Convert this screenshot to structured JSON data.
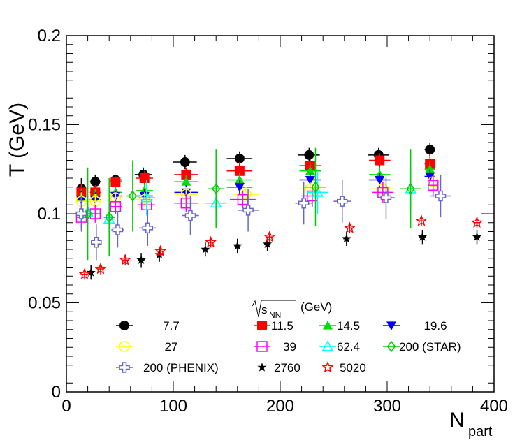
{
  "chart_data": {
    "type": "scatter",
    "title": "",
    "xlabel": "N",
    "xlabel_sub": "part",
    "ylabel": "T (GeV)",
    "xlim": [
      0,
      400
    ],
    "ylim": [
      0,
      0.2
    ],
    "xticks": [
      "0",
      "100",
      "200",
      "300",
      "400"
    ],
    "yticks": [
      "0",
      "0.05",
      "0.1",
      "0.15",
      "0.2"
    ],
    "grid": false,
    "legend_header": "(GeV)",
    "legend_header_radical": "s",
    "legend_header_sub": "NN",
    "series": [
      {
        "name": "7.7",
        "color": "#000000",
        "marker": "circle-filled",
        "points": [
          [
            14,
            0.114,
            4,
            0.006
          ],
          [
            27,
            0.118,
            5,
            0.004
          ],
          [
            46,
            0.119,
            6,
            0.003
          ],
          [
            72,
            0.122,
            8,
            0.004
          ],
          [
            111,
            0.129,
            11,
            0.004
          ],
          [
            162,
            0.131,
            12,
            0.004
          ],
          [
            227,
            0.133,
            10,
            0.004
          ],
          [
            292,
            0.133,
            10,
            0.004
          ],
          [
            340,
            0.136,
            5,
            0.004
          ]
        ]
      },
      {
        "name": "11.5",
        "color": "#ff0000",
        "marker": "square-filled",
        "points": [
          [
            14,
            0.112,
            4,
            0.005
          ],
          [
            27,
            0.112,
            5,
            0.004
          ],
          [
            46,
            0.118,
            6,
            0.003
          ],
          [
            73,
            0.12,
            8,
            0.004
          ],
          [
            112,
            0.122,
            11,
            0.004
          ],
          [
            162,
            0.124,
            12,
            0.005
          ],
          [
            228,
            0.127,
            10,
            0.004
          ],
          [
            293,
            0.13,
            10,
            0.004
          ],
          [
            340,
            0.128,
            5,
            0.004
          ]
        ]
      },
      {
        "name": "14.5",
        "color": "#00dd00",
        "marker": "triangle-up-filled",
        "points": [
          [
            14,
            0.109,
            4,
            0.005
          ],
          [
            27,
            0.11,
            5,
            0.004
          ],
          [
            46,
            0.112,
            6,
            0.003
          ],
          [
            73,
            0.113,
            8,
            0.004
          ],
          [
            112,
            0.118,
            11,
            0.004
          ],
          [
            162,
            0.119,
            12,
            0.004
          ],
          [
            228,
            0.124,
            10,
            0.004
          ],
          [
            293,
            0.122,
            10,
            0.004
          ],
          [
            340,
            0.125,
            5,
            0.004
          ]
        ]
      },
      {
        "name": "19.6",
        "color": "#0000ff",
        "marker": "triangle-down-filled",
        "points": [
          [
            14,
            0.108,
            4,
            0.005
          ],
          [
            27,
            0.108,
            5,
            0.004
          ],
          [
            46,
            0.11,
            6,
            0.003
          ],
          [
            73,
            0.11,
            8,
            0.004
          ],
          [
            112,
            0.112,
            11,
            0.004
          ],
          [
            162,
            0.115,
            12,
            0.004
          ],
          [
            228,
            0.119,
            10,
            0.004
          ],
          [
            293,
            0.119,
            10,
            0.004
          ],
          [
            340,
            0.121,
            5,
            0.004
          ]
        ]
      },
      {
        "name": "27",
        "color": "#ffff00",
        "marker": "circle-open",
        "points": [
          [
            14,
            0.107,
            4,
            0.005
          ],
          [
            27,
            0.107,
            5,
            0.004
          ],
          [
            46,
            0.109,
            6,
            0.003
          ],
          [
            73,
            0.108,
            8,
            0.004
          ],
          [
            112,
            0.111,
            11,
            0.004
          ],
          [
            168,
            0.111,
            12,
            0.004
          ],
          [
            228,
            0.114,
            10,
            0.004
          ],
          [
            296,
            0.114,
            10,
            0.004
          ],
          [
            343,
            0.118,
            5,
            0.004
          ]
        ]
      },
      {
        "name": "39",
        "color": "#ff00ff",
        "marker": "square-open",
        "points": [
          [
            14,
            0.098,
            4,
            0.006
          ],
          [
            27,
            0.1,
            5,
            0.005
          ],
          [
            46,
            0.104,
            6,
            0.004
          ],
          [
            75,
            0.105,
            8,
            0.004
          ],
          [
            112,
            0.106,
            11,
            0.005
          ],
          [
            165,
            0.108,
            12,
            0.005
          ],
          [
            230,
            0.11,
            10,
            0.006
          ],
          [
            296,
            0.112,
            10,
            0.006
          ],
          [
            343,
            0.116,
            5,
            0.006
          ]
        ]
      },
      {
        "name": "62.4",
        "color": "#00ffff",
        "marker": "triangle-up-open",
        "points": [
          [
            20,
            0.101,
            4,
            0.008
          ],
          [
            40,
            0.097,
            5,
            0.008
          ],
          [
            75,
            0.109,
            8,
            0.01
          ],
          [
            140,
            0.106,
            10,
            0.01
          ],
          [
            235,
            0.112,
            10,
            0.012
          ],
          [
            322,
            0.114,
            10,
            0.012
          ]
        ]
      },
      {
        "name": "200 (STAR)",
        "color": "#00cc00",
        "marker": "diamond-open",
        "points": [
          [
            20,
            0.1,
            4,
            0.026
          ],
          [
            40,
            0.098,
            5,
            0.022
          ],
          [
            62,
            0.11,
            6,
            0.02
          ],
          [
            140,
            0.114,
            8,
            0.022
          ],
          [
            233,
            0.115,
            10,
            0.022
          ],
          [
            322,
            0.114,
            10,
            0.022
          ]
        ]
      },
      {
        "name": "200 (PHENIX)",
        "color": "#6666cc",
        "marker": "cross-open",
        "points": [
          [
            14,
            0.1,
            4,
            0.01
          ],
          [
            28,
            0.084,
            5,
            0.01
          ],
          [
            48,
            0.091,
            6,
            0.01
          ],
          [
            76,
            0.092,
            8,
            0.01
          ],
          [
            116,
            0.099,
            8,
            0.011
          ],
          [
            170,
            0.102,
            10,
            0.012
          ],
          [
            222,
            0.106,
            8,
            0.012
          ],
          [
            258,
            0.107,
            8,
            0.012
          ],
          [
            299,
            0.109,
            8,
            0.012
          ],
          [
            350,
            0.11,
            10,
            0.012
          ]
        ]
      },
      {
        "name": "2760",
        "color": "#000000",
        "marker": "star-filled",
        "points": [
          [
            23,
            0.067,
            3,
            0.004
          ],
          [
            70,
            0.074,
            3,
            0.004
          ],
          [
            87,
            0.077,
            3,
            0.004
          ],
          [
            130,
            0.08,
            3,
            0.004
          ],
          [
            160,
            0.082,
            3,
            0.004
          ],
          [
            188,
            0.083,
            3,
            0.004
          ],
          [
            262,
            0.086,
            3,
            0.004
          ],
          [
            333,
            0.087,
            3,
            0.004
          ],
          [
            384,
            0.087,
            3,
            0.004
          ]
        ]
      },
      {
        "name": "5020",
        "color": "#ff0000",
        "marker": "star-open",
        "points": [
          [
            17,
            0.066,
            3,
            0.003
          ],
          [
            32,
            0.069,
            3,
            0.003
          ],
          [
            55,
            0.074,
            3,
            0.003
          ],
          [
            88,
            0.079,
            3,
            0.003
          ],
          [
            135,
            0.084,
            3,
            0.003
          ],
          [
            190,
            0.087,
            3,
            0.003
          ],
          [
            265,
            0.092,
            3,
            0.003
          ],
          [
            332,
            0.096,
            3,
            0.003
          ],
          [
            384,
            0.095,
            3,
            0.003
          ]
        ]
      }
    ]
  }
}
